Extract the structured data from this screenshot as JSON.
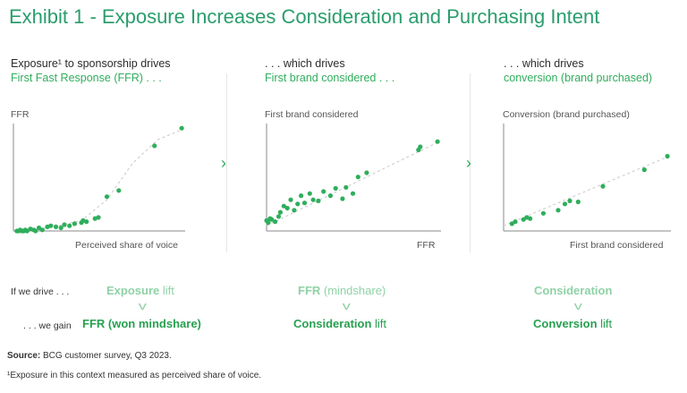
{
  "title": "Exhibit 1 - Exposure Increases Consideration and Purchasing Intent",
  "panels": [
    {
      "line1": "Exposure¹ to sponsorship drives",
      "line2": "First Fast Response (FFR) . . ."
    },
    {
      "line1": ". . . which drives",
      "line2": "First brand considered . . ."
    },
    {
      "line1": ". . . which drives",
      "line2": "conversion (brand purchased)"
    }
  ],
  "chart_data": [
    {
      "type": "scatter",
      "ylabel": "FFR",
      "xlabel": "Perceived share of voice",
      "xlim": [
        0,
        1
      ],
      "ylim": [
        0,
        1
      ],
      "trend": {
        "x": [
          0.02,
          0.2,
          0.4,
          0.55,
          0.7,
          0.85,
          1.0
        ],
        "y": [
          0.0,
          0.03,
          0.1,
          0.3,
          0.65,
          0.88,
          0.98
        ]
      },
      "points": {
        "x": [
          0.02,
          0.03,
          0.04,
          0.05,
          0.06,
          0.07,
          0.08,
          0.1,
          0.12,
          0.13,
          0.15,
          0.17,
          0.2,
          0.22,
          0.25,
          0.28,
          0.3,
          0.33,
          0.36,
          0.4,
          0.41,
          0.43,
          0.48,
          0.5,
          0.55,
          0.62,
          0.83,
          0.99
        ],
        "y": [
          0.0,
          0.0,
          0.01,
          0.0,
          0.0,
          0.01,
          0.0,
          0.02,
          0.01,
          0.0,
          0.03,
          0.01,
          0.04,
          0.05,
          0.04,
          0.03,
          0.06,
          0.05,
          0.07,
          0.08,
          0.1,
          0.09,
          0.12,
          0.13,
          0.33,
          0.39,
          0.82,
          0.99
        ]
      }
    },
    {
      "type": "scatter",
      "ylabel": "First brand considered",
      "xlabel": "FFR",
      "xlim": [
        0,
        1
      ],
      "ylim": [
        0,
        1
      ],
      "trend": {
        "x": [
          0.0,
          1.0
        ],
        "y": [
          0.05,
          0.86
        ]
      },
      "points": {
        "x": [
          0.0,
          0.01,
          0.02,
          0.03,
          0.05,
          0.07,
          0.08,
          0.1,
          0.12,
          0.14,
          0.16,
          0.18,
          0.2,
          0.22,
          0.25,
          0.27,
          0.3,
          0.33,
          0.37,
          0.4,
          0.44,
          0.46,
          0.5,
          0.53,
          0.58,
          0.88,
          0.89,
          0.99
        ],
        "y": [
          0.1,
          0.08,
          0.12,
          0.11,
          0.09,
          0.14,
          0.18,
          0.24,
          0.22,
          0.3,
          0.2,
          0.26,
          0.34,
          0.27,
          0.36,
          0.3,
          0.29,
          0.38,
          0.34,
          0.41,
          0.31,
          0.42,
          0.36,
          0.52,
          0.56,
          0.78,
          0.81,
          0.86
        ]
      }
    },
    {
      "type": "scatter",
      "ylabel": "Conversion (brand purchased)",
      "xlabel": "First brand considered",
      "xlim": [
        0,
        1
      ],
      "ylim": [
        0,
        1
      ],
      "trend": {
        "x": [
          0.0,
          1.0
        ],
        "y": [
          0.05,
          0.72
        ]
      },
      "points": {
        "x": [
          0.05,
          0.07,
          0.12,
          0.14,
          0.16,
          0.24,
          0.33,
          0.37,
          0.4,
          0.45,
          0.6,
          0.85,
          0.99
        ],
        "y": [
          0.07,
          0.09,
          0.11,
          0.13,
          0.12,
          0.17,
          0.2,
          0.26,
          0.29,
          0.28,
          0.43,
          0.59,
          0.72
        ]
      }
    }
  ],
  "rows": {
    "drive_label": "If we drive . . .",
    "gain_label": ". . . we gain",
    "chevron": "v",
    "drives": [
      {
        "bold": "Exposure",
        "rest": " lift"
      },
      {
        "bold": "FFR",
        "rest": " (mindshare)"
      },
      {
        "bold": "Consideration",
        "rest": ""
      }
    ],
    "gains": [
      {
        "bold": "FFR (won mindshare)",
        "rest": ""
      },
      {
        "bold": "Consideration",
        "rest": " lift"
      },
      {
        "bold": "Conversion",
        "rest": " lift"
      }
    ]
  },
  "footer": {
    "source_label": "Source:",
    "source_text": " BCG customer survey, Q3 2023.",
    "note": "¹Exposure in this context measured as perceived share of voice."
  },
  "colors": {
    "accent": "#2fae5c",
    "title": "#2a9d6e",
    "trend": "#c8c8c8",
    "light": "#8fd2a6"
  }
}
